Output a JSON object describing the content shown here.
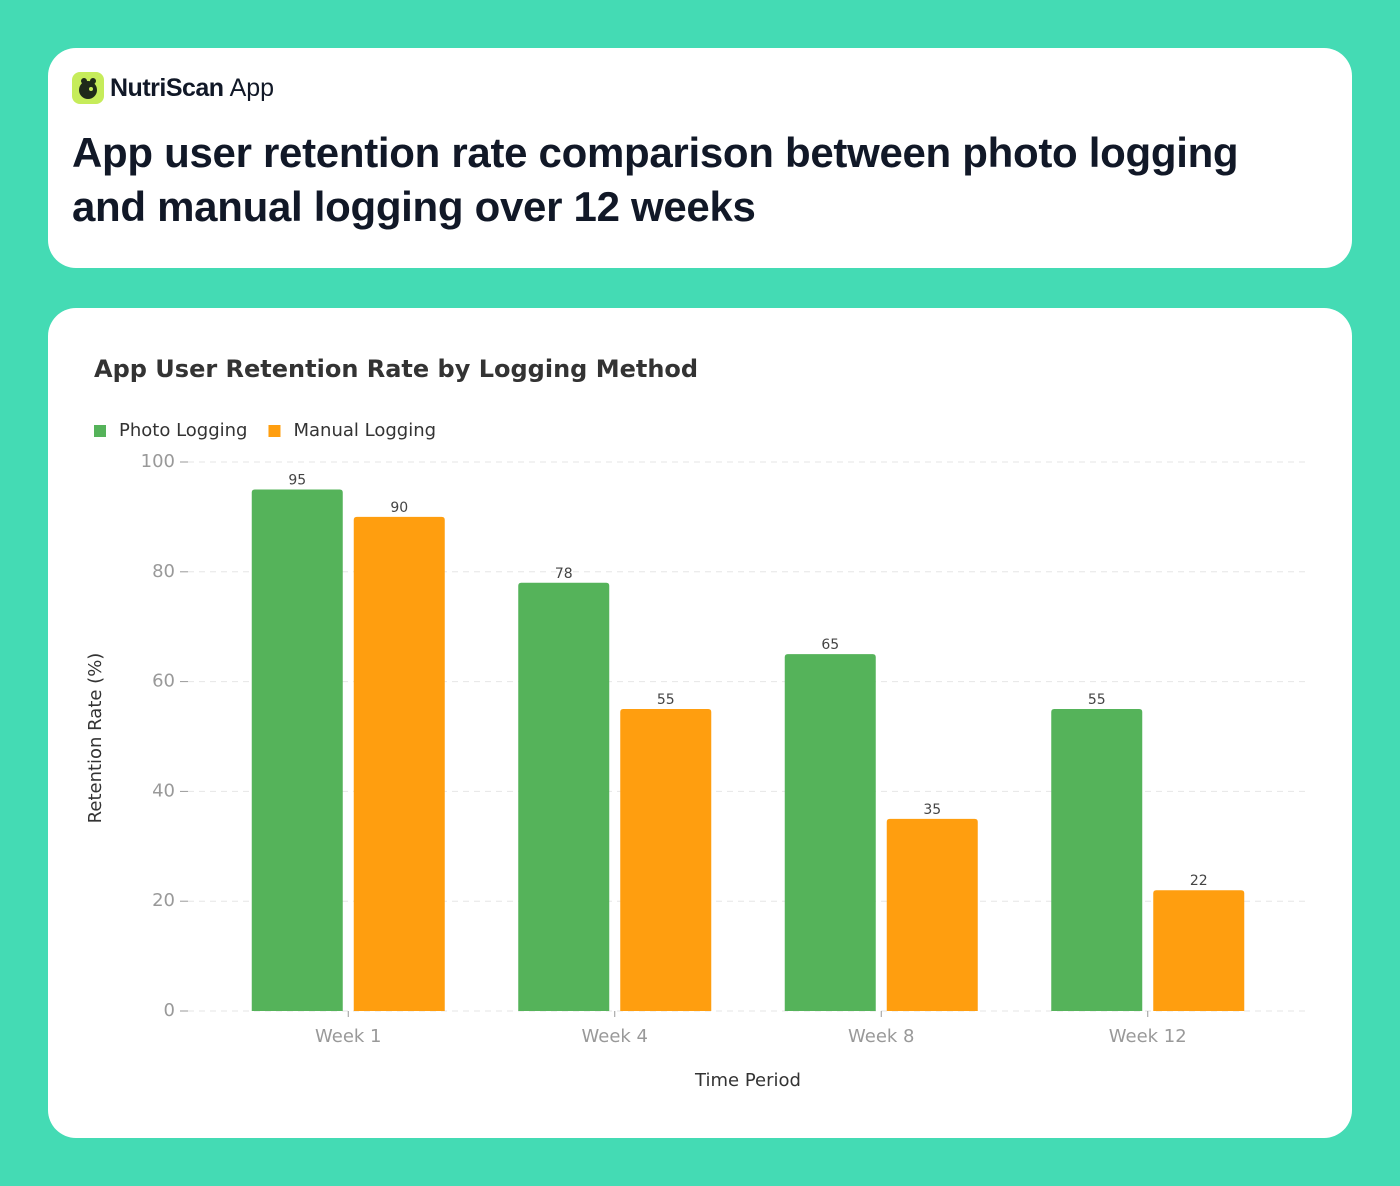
{
  "header": {
    "brand_name": "NutriScan",
    "brand_suffix": "App",
    "title": "App user retention rate comparison between photo logging and manual logging over 12 weeks"
  },
  "chart_data": {
    "type": "bar",
    "title": "App User Retention Rate by Logging Method",
    "x_label": "Time Period",
    "y_label": "Retention Rate (%)",
    "categories": [
      "Week 1",
      "Week 4",
      "Week 8",
      "Week 12"
    ],
    "series": [
      {
        "name": "Photo Logging",
        "color": "#55b35a",
        "values": [
          95,
          78,
          65,
          55
        ]
      },
      {
        "name": "Manual Logging",
        "color": "#ff9e0f",
        "values": [
          90,
          55,
          35,
          22
        ]
      }
    ],
    "ylim": [
      0,
      100
    ],
    "yticks": [
      0,
      20,
      40,
      60,
      80,
      100
    ],
    "grid": true,
    "legend": "top-left"
  }
}
